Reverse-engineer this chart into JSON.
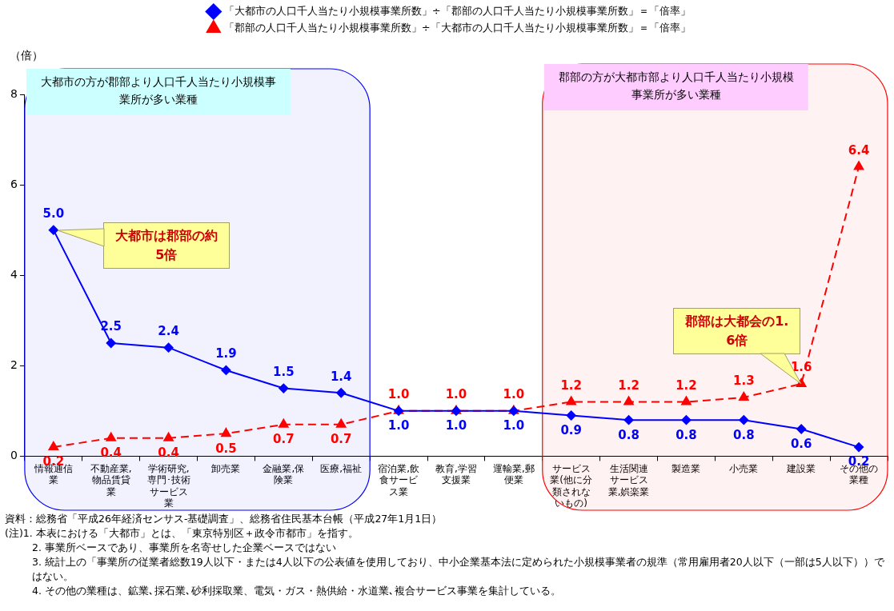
{
  "chart_data": {
    "type": "line",
    "categories": [
      "情報通信業",
      "不動産業,物品賃貸業",
      "学術研究,専門･技術サービス業",
      "卸売業",
      "金融業,保険業",
      "医療,福祉",
      "宿泊業,飲食サービス業",
      "教育,学習支援業",
      "運輸業,郵便業",
      "サービス業(他に分類されないもの)",
      "生活関連サービス業,娯楽業",
      "製造業",
      "小売業",
      "建設業",
      "その他の業種"
    ],
    "series": [
      {
        "name": "「大都市の人口千人当たり小規模事業所数」÷「郡部の人口千人当たり小規模事業所数」＝「倍率」",
        "color": "#0000ff",
        "marker": "diamond",
        "line_style": "solid",
        "values": [
          5.0,
          2.5,
          2.4,
          1.9,
          1.5,
          1.4,
          1.0,
          1.0,
          1.0,
          0.9,
          0.8,
          0.8,
          0.8,
          0.6,
          0.2
        ],
        "value_labels": [
          "5.0",
          "2.5",
          "2.4",
          "1.9",
          "1.5",
          "1.4",
          "1.0",
          "1.0",
          "1.0",
          "0.9",
          "0.8",
          "0.8",
          "0.8",
          "0.6",
          "0.2"
        ]
      },
      {
        "name": "「郡部の人口千人当たり小規模事業所数」÷「大都市の人口千人当たり小規模事業所数」＝「倍率」",
        "color": "#ff0000",
        "marker": "triangle",
        "line_style": "dashed",
        "values": [
          0.2,
          0.4,
          0.4,
          0.5,
          0.7,
          0.7,
          1.0,
          1.0,
          1.0,
          1.2,
          1.2,
          1.2,
          1.3,
          1.6,
          6.4
        ],
        "value_labels": [
          "0.2",
          "0.4",
          "0.4",
          "0.5",
          "0.7",
          "0.7",
          "1.0",
          "1.0",
          "1.0",
          "1.2",
          "1.2",
          "1.2",
          "1.3",
          "1.6",
          "6.4"
        ]
      }
    ],
    "ylabel": "（倍）",
    "ylim": [
      0,
      8
    ],
    "yticks": [
      0,
      2,
      4,
      6,
      8
    ],
    "grid": false,
    "legend": "top",
    "bands": [
      {
        "axis": "x",
        "from": "情報通信業",
        "to": "医療,福祉",
        "label": "大都市の方が郡部より人口千人当たり小規模事業所が多い業種",
        "color": "#0000ff"
      },
      {
        "axis": "x",
        "from": "サービス業(他に分類されないもの)",
        "to": "その他の業種",
        "label": "郡部の方が大都市部より人口千人当たり小規模事業所が多い業種",
        "color": "#ff0000"
      }
    ],
    "annotations": [
      {
        "text": "大都市は郡部の約5倍",
        "x": "情報通信業",
        "y": 5.0
      },
      {
        "text": "郡部は大都会の1.6倍",
        "x": "建設業",
        "y": 1.6
      },
      "資料：総務省「平成26年経済センサス-基礎調査」、総務省住民基本台帳（平成27年1月1日）",
      "(注)1. 本表における「大都市」とは、「東京特別区＋政令市都市」を指す。",
      "2. 事業所ベースであり、事業所を名寄せした企業ベースではない",
      "3. 統計上の「事業所の従業者総数19人以下・または4人以下の公表値を使用しており、中小企業基本法に定められた小規模事業者の規準（常用雇用者20人以下（一部は5人以下））ではない。",
      "4. その他の業種は、鉱業､採石業､砂利採取業、電気・ガス・熱供給・水道業､複合サービス事業を集計している。"
    ]
  }
}
